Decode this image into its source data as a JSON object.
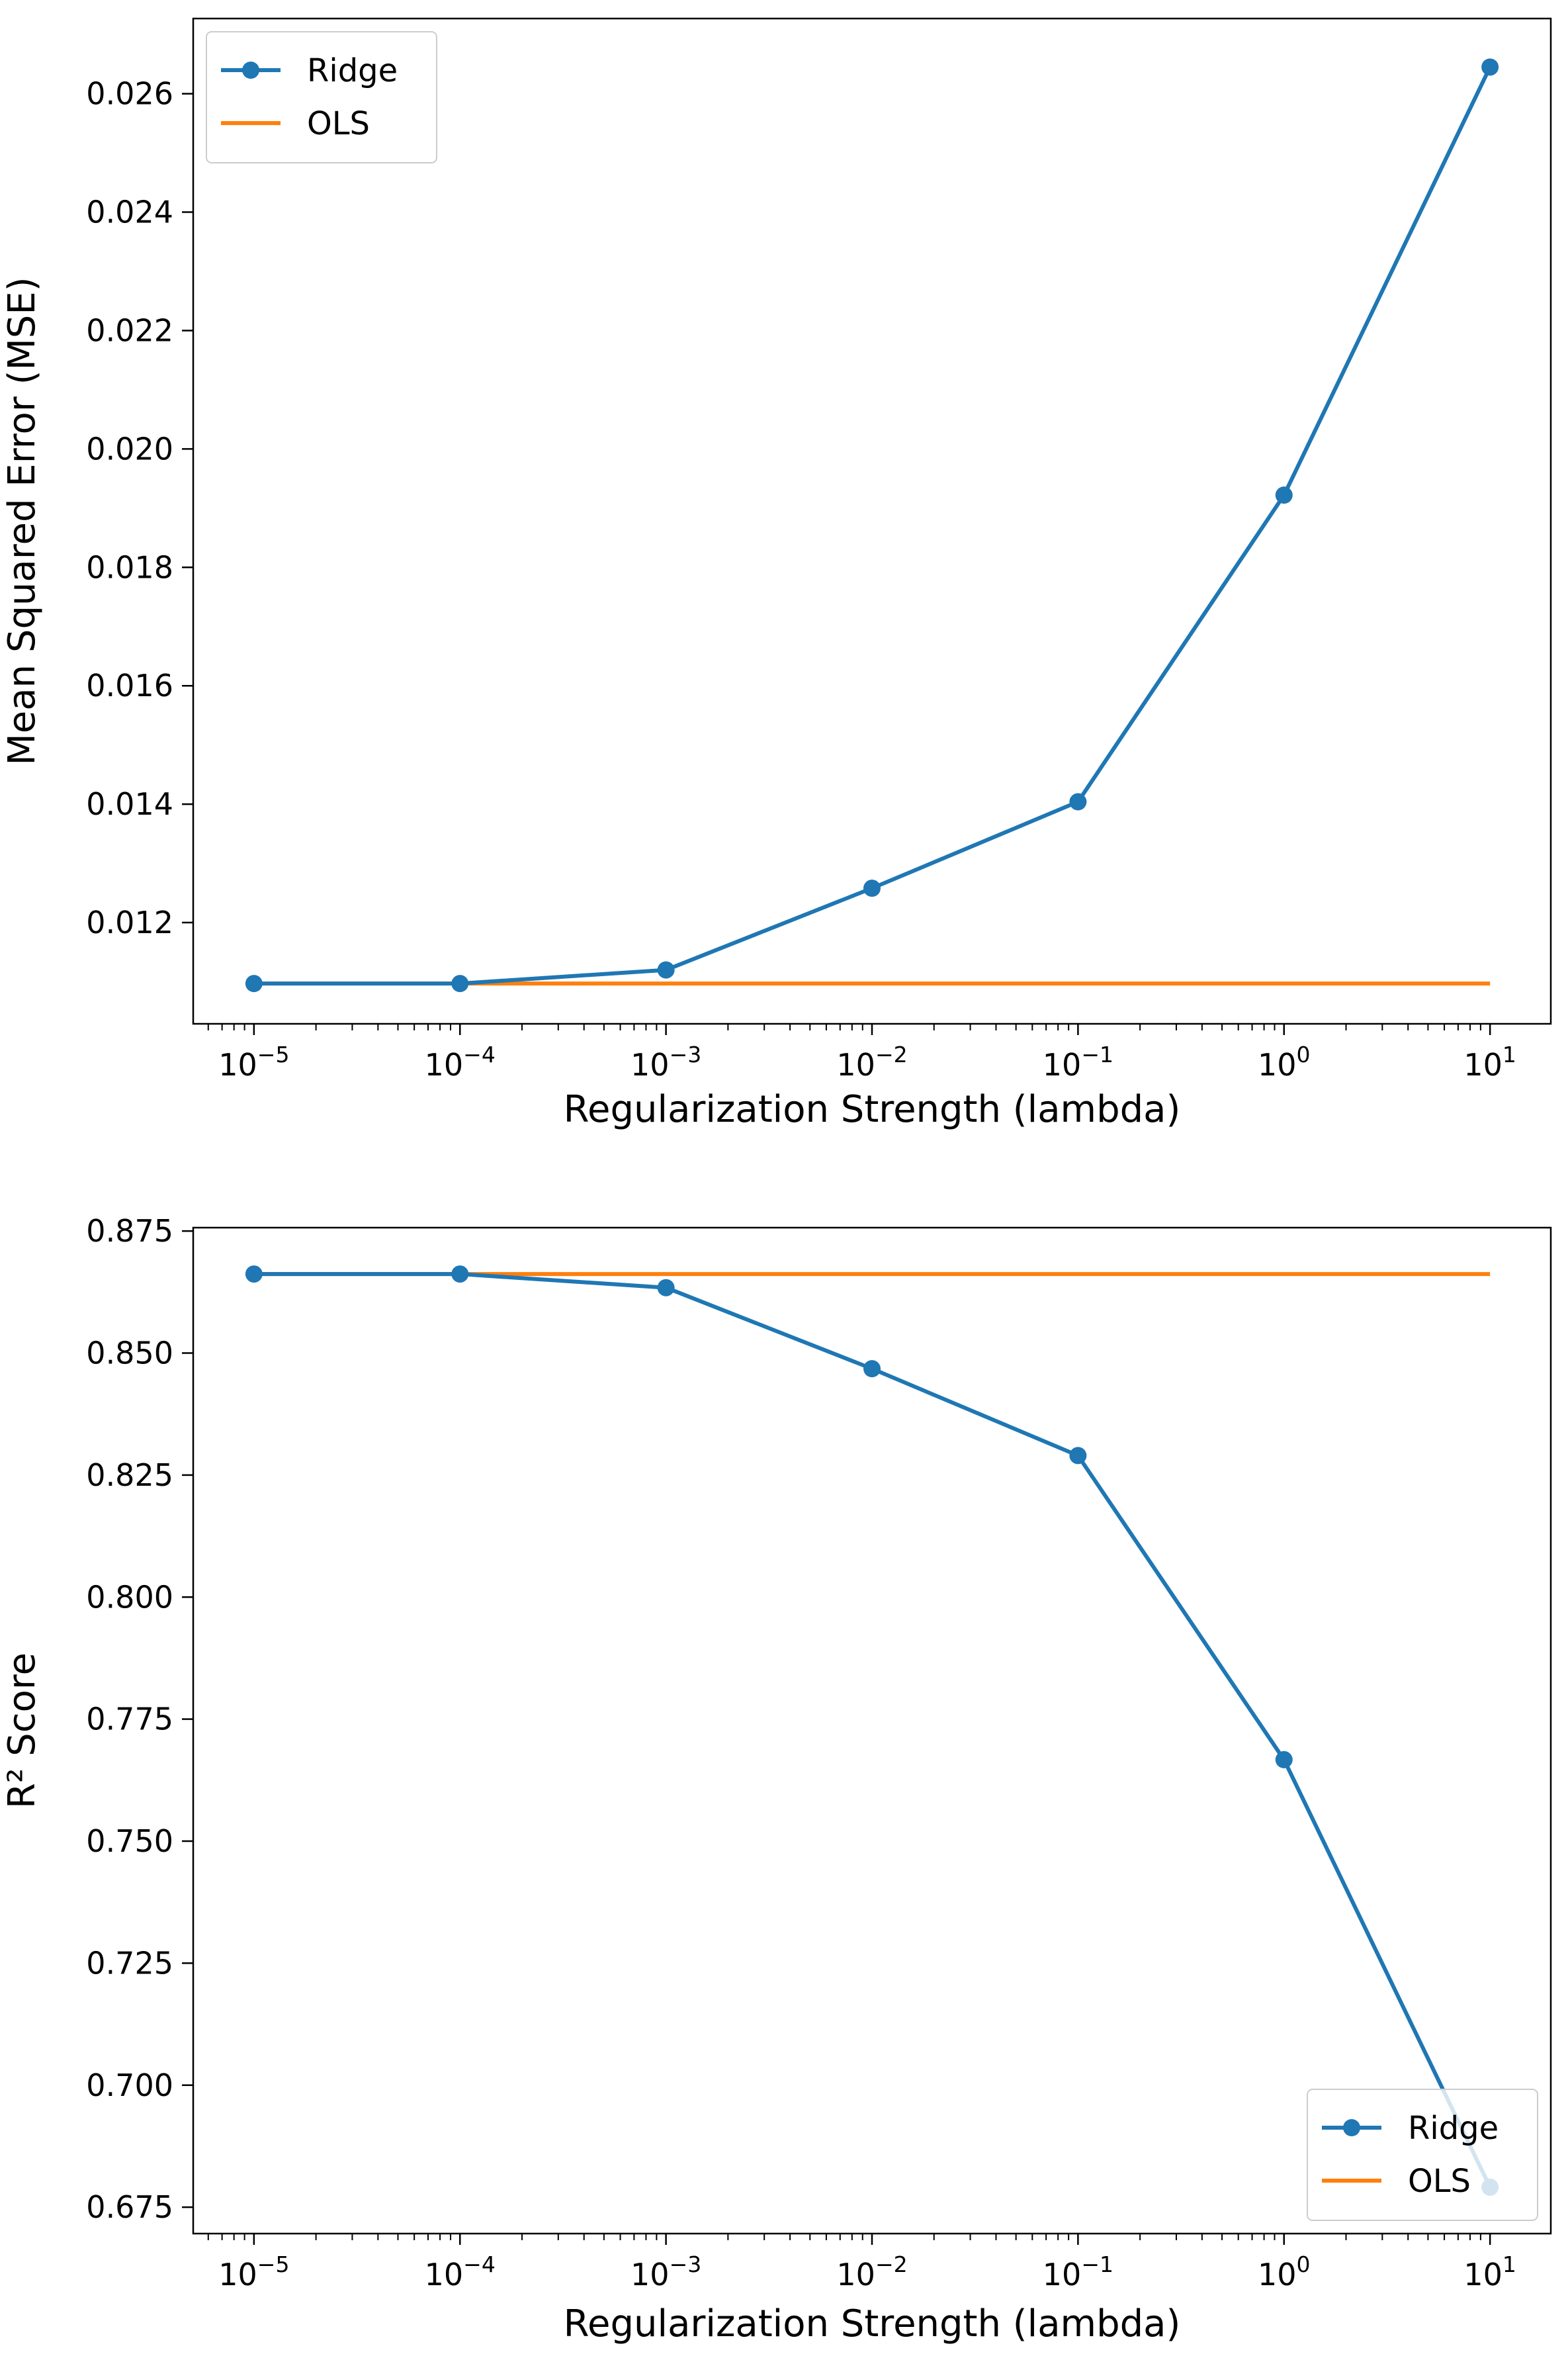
{
  "chart_data": [
    {
      "type": "line",
      "title": "",
      "xlabel": "Regularization Strength (lambda)",
      "ylabel": "Mean Squared Error (MSE)",
      "xscale": "log",
      "x": [
        1e-05,
        0.0001,
        0.001,
        0.01,
        0.1,
        1,
        10
      ],
      "xticks": [
        {
          "base": "10",
          "exp": "−5"
        },
        {
          "base": "10",
          "exp": "−4"
        },
        {
          "base": "10",
          "exp": "−3"
        },
        {
          "base": "10",
          "exp": "−2"
        },
        {
          "base": "10",
          "exp": "−1"
        },
        {
          "base": "10",
          "exp": "0"
        },
        {
          "base": "10",
          "exp": "1"
        }
      ],
      "yticks": [
        "0.012",
        "0.014",
        "0.016",
        "0.018",
        "0.020",
        "0.022",
        "0.024",
        "0.026"
      ],
      "ytick_values": [
        0.012,
        0.014,
        0.016,
        0.018,
        0.02,
        0.022,
        0.024,
        0.026
      ],
      "ylim": [
        0.01029,
        0.02727
      ],
      "grid": false,
      "legend_position": "top-left",
      "series": [
        {
          "name": "Ridge",
          "color": "#1f77b4",
          "marker": "circle",
          "values": [
            0.01097,
            0.01097,
            0.0112,
            0.01258,
            0.01404,
            0.01922,
            0.02645
          ]
        },
        {
          "name": "OLS",
          "color": "#ff7f0e",
          "marker": "none",
          "values": [
            0.01097,
            0.01097,
            0.01097,
            0.01097,
            0.01097,
            0.01097,
            0.01097
          ]
        }
      ]
    },
    {
      "type": "line",
      "title": "",
      "xlabel": "Regularization Strength (lambda)",
      "ylabel": "R² Score",
      "xscale": "log",
      "x": [
        1e-05,
        0.0001,
        0.001,
        0.01,
        0.1,
        1,
        10
      ],
      "xticks": [
        {
          "base": "10",
          "exp": "−5"
        },
        {
          "base": "10",
          "exp": "−4"
        },
        {
          "base": "10",
          "exp": "−3"
        },
        {
          "base": "10",
          "exp": "−2"
        },
        {
          "base": "10",
          "exp": "−1"
        },
        {
          "base": "10",
          "exp": "0"
        },
        {
          "base": "10",
          "exp": "1"
        }
      ],
      "yticks": [
        "0.675",
        "0.700",
        "0.725",
        "0.750",
        "0.775",
        "0.800",
        "0.825",
        "0.850",
        "0.875"
      ],
      "ytick_values": [
        0.675,
        0.7,
        0.725,
        0.75,
        0.775,
        0.8,
        0.825,
        0.85,
        0.875
      ],
      "ylim": [
        0.6696,
        0.8757
      ],
      "grid": false,
      "legend_position": "bottom-right",
      "series": [
        {
          "name": "Ridge",
          "color": "#1f77b4",
          "marker": "circle",
          "values": [
            0.8662,
            0.8662,
            0.8634,
            0.8468,
            0.829,
            0.7667,
            0.6791
          ]
        },
        {
          "name": "OLS",
          "color": "#ff7f0e",
          "marker": "none",
          "values": [
            0.8662,
            0.8662,
            0.8662,
            0.8662,
            0.8662,
            0.8662,
            0.8662
          ]
        }
      ]
    }
  ]
}
